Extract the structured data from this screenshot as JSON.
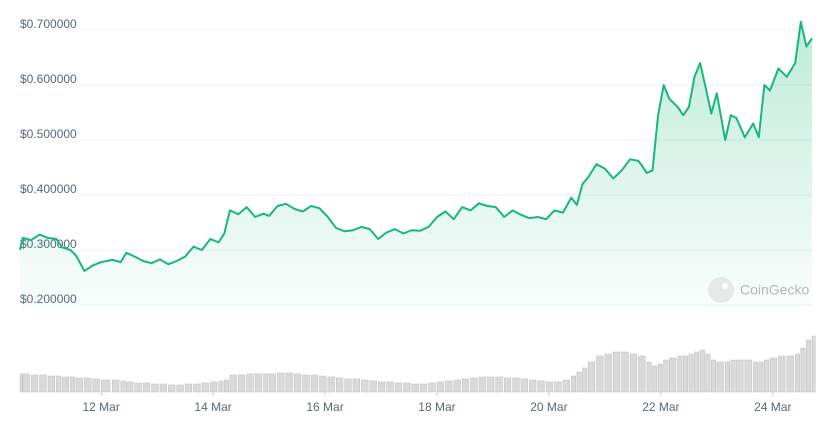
{
  "chart_data": {
    "type": "area",
    "x": [
      10.55,
      10.6,
      10.75,
      10.9,
      11.05,
      11.2,
      11.3,
      11.45,
      11.55,
      11.7,
      11.85,
      12.0,
      12.2,
      12.35,
      12.45,
      12.6,
      12.75,
      12.9,
      13.05,
      13.2,
      13.35,
      13.5,
      13.65,
      13.8,
      13.95,
      14.1,
      14.2,
      14.3,
      14.45,
      14.6,
      14.75,
      14.9,
      15.0,
      15.15,
      15.3,
      15.45,
      15.6,
      15.75,
      15.9,
      16.05,
      16.2,
      16.35,
      16.5,
      16.65,
      16.8,
      16.95,
      17.1,
      17.25,
      17.4,
      17.55,
      17.7,
      17.85,
      18.0,
      18.15,
      18.3,
      18.45,
      18.6,
      18.75,
      18.9,
      19.05,
      19.2,
      19.35,
      19.5,
      19.65,
      19.8,
      19.95,
      20.1,
      20.25,
      20.4,
      20.5,
      20.6,
      20.7,
      20.85,
      21.0,
      21.15,
      21.3,
      21.45,
      21.6,
      21.75,
      21.85,
      21.95,
      22.05,
      22.15,
      22.3,
      22.4,
      22.5,
      22.6,
      22.7,
      22.8,
      22.9,
      23.0,
      23.15,
      23.25,
      23.35,
      23.5,
      23.65,
      23.75,
      23.85,
      23.95,
      24.1,
      24.25,
      24.4,
      24.5,
      24.6,
      24.7
    ],
    "series": [
      {
        "color": "#16b979",
        "values": [
          0.3,
          0.322,
          0.318,
          0.328,
          0.322,
          0.32,
          0.305,
          0.3,
          0.29,
          0.262,
          0.272,
          0.278,
          0.282,
          0.278,
          0.295,
          0.288,
          0.28,
          0.276,
          0.283,
          0.274,
          0.28,
          0.288,
          0.306,
          0.3,
          0.32,
          0.314,
          0.33,
          0.372,
          0.365,
          0.378,
          0.36,
          0.366,
          0.362,
          0.38,
          0.384,
          0.375,
          0.37,
          0.38,
          0.376,
          0.36,
          0.34,
          0.334,
          0.336,
          0.342,
          0.338,
          0.32,
          0.332,
          0.338,
          0.33,
          0.336,
          0.335,
          0.342,
          0.36,
          0.37,
          0.356,
          0.378,
          0.372,
          0.385,
          0.38,
          0.378,
          0.36,
          0.372,
          0.364,
          0.358,
          0.36,
          0.356,
          0.372,
          0.368,
          0.395,
          0.382,
          0.42,
          0.432,
          0.456,
          0.448,
          0.43,
          0.445,
          0.465,
          0.462,
          0.44,
          0.445,
          0.545,
          0.6,
          0.575,
          0.56,
          0.545,
          0.56,
          0.615,
          0.64,
          0.595,
          0.548,
          0.585,
          0.5,
          0.545,
          0.54,
          0.505,
          0.53,
          0.505,
          0.6,
          0.59,
          0.63,
          0.615,
          0.64,
          0.715,
          0.67,
          0.685
        ]
      }
    ],
    "volume": {
      "color": "#d9d9d9",
      "values": [
        18,
        18,
        17,
        17,
        16,
        16,
        15,
        15,
        14,
        14,
        13,
        12,
        12,
        11,
        10,
        9,
        9,
        8,
        8,
        7,
        7,
        8,
        8,
        9,
        10,
        11,
        12,
        17,
        17,
        18,
        18,
        18,
        18,
        19,
        19,
        18,
        17,
        17,
        16,
        15,
        14,
        13,
        13,
        12,
        11,
        10,
        10,
        9,
        9,
        8,
        8,
        9,
        10,
        11,
        12,
        13,
        14,
        15,
        15,
        15,
        14,
        14,
        13,
        12,
        11,
        10,
        10,
        12,
        16,
        20,
        24,
        30,
        36,
        38,
        40,
        40,
        38,
        36,
        30,
        26,
        28,
        32,
        34,
        36,
        36,
        38,
        40,
        42,
        38,
        32,
        30,
        30,
        32,
        32,
        32,
        30,
        30,
        32,
        34,
        36,
        36,
        38,
        44,
        52,
        56
      ],
      "ylim": [
        0,
        60
      ]
    },
    "xlim": [
      10.55,
      24.7
    ],
    "xticks": [
      {
        "value": 12,
        "label": "12 Mar"
      },
      {
        "value": 14,
        "label": "14 Mar"
      },
      {
        "value": 16,
        "label": "16 Mar"
      },
      {
        "value": 18,
        "label": "18 Mar"
      },
      {
        "value": 20,
        "label": "20 Mar"
      },
      {
        "value": 22,
        "label": "22 Mar"
      },
      {
        "value": 24,
        "label": "24 Mar"
      }
    ],
    "ylim": [
      0.19,
      0.72
    ],
    "yticks": [
      {
        "value": 0.2,
        "label": "$0.200000"
      },
      {
        "value": 0.3,
        "label": "$0.300000"
      },
      {
        "value": 0.4,
        "label": "$0.400000"
      },
      {
        "value": 0.5,
        "label": "$0.500000"
      },
      {
        "value": 0.6,
        "label": "$0.600000"
      },
      {
        "value": 0.7,
        "label": "$0.700000"
      }
    ],
    "grid": true,
    "watermark": "CoinGecko"
  }
}
